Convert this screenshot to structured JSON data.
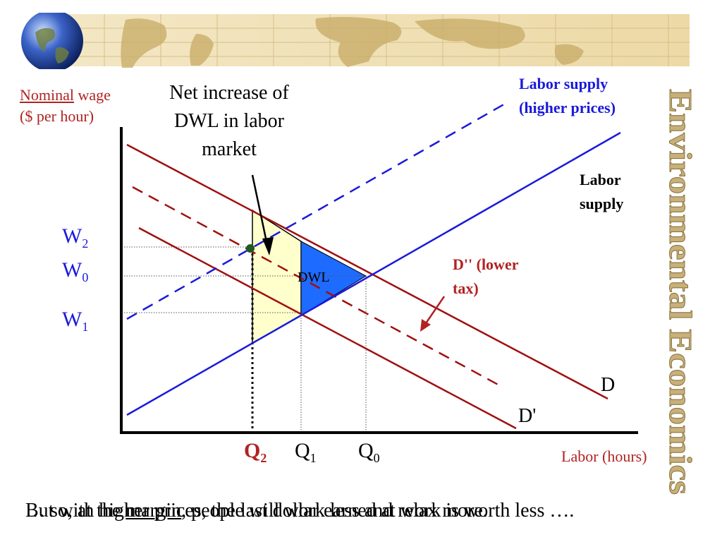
{
  "side_title": "Environmental Economics",
  "y_axis": {
    "line1_underlined": "Nominal",
    "line1_rest": " wage",
    "line2": "($ per hour)"
  },
  "x_axis": {
    "label": "Labor (hours)"
  },
  "annotation": {
    "line1": "Net increase of",
    "line2": "DWL in labor",
    "line3": "market"
  },
  "supply_higher": {
    "line1": "Labor supply",
    "line2": "(higher prices)"
  },
  "supply": {
    "line1": "Labor",
    "line2": "supply"
  },
  "demand_lower_tax": {
    "line1": "D'' (lower",
    "line2": "tax)"
  },
  "demand_labels": {
    "d": "D",
    "d_prime": "D'"
  },
  "dwl_label": "DWL",
  "wage_labels": [
    {
      "main": "W",
      "sub": "2"
    },
    {
      "main": "W",
      "sub": "0"
    },
    {
      "main": "W",
      "sub": "1"
    }
  ],
  "quantity_labels": [
    {
      "main": "Q",
      "sub": "2"
    },
    {
      "main": "Q",
      "sub": "1"
    },
    {
      "main": "Q",
      "sub": "0"
    }
  ],
  "footer": {
    "text_a": "But with higher prices, the last dollar earned at work is worth less ….",
    "text_b_prefix": "… so, at the ",
    "text_b_underlined": "margin",
    "text_b_suffix": ", people will work less and relax more."
  },
  "colors": {
    "supply": "#1a1adb",
    "demand": "#a01010",
    "dwl_fill": "#1e6bff",
    "net_dwl_fill": "#ffffcc",
    "accent_red": "#b22222",
    "q2_dot": "#1f5a1f",
    "side_title": "#c8b07a"
  }
}
